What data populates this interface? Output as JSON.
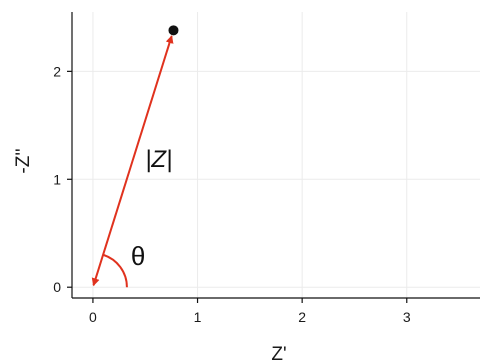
{
  "chart_data": {
    "type": "scatter",
    "xlabel": "Z'",
    "ylabel": "-Z''",
    "xlim": [
      -0.2,
      3.7
    ],
    "ylim": [
      -0.1,
      2.55
    ],
    "x_ticks": [
      0,
      1,
      2,
      3
    ],
    "x_tick_labels": [
      "0",
      "1",
      "2",
      "3"
    ],
    "y_ticks": [
      0,
      1,
      2
    ],
    "y_tick_labels": [
      "0",
      "1",
      "2"
    ],
    "grid": true,
    "points": [
      {
        "x": 0.77,
        "y": 2.38
      }
    ],
    "vector": {
      "from": [
        0,
        0
      ],
      "to": [
        0.77,
        2.38
      ],
      "double_headed": true,
      "color": "#e0321e",
      "label": "|Z|"
    },
    "angle_arc": {
      "label": "θ",
      "color": "#e0321e"
    }
  }
}
